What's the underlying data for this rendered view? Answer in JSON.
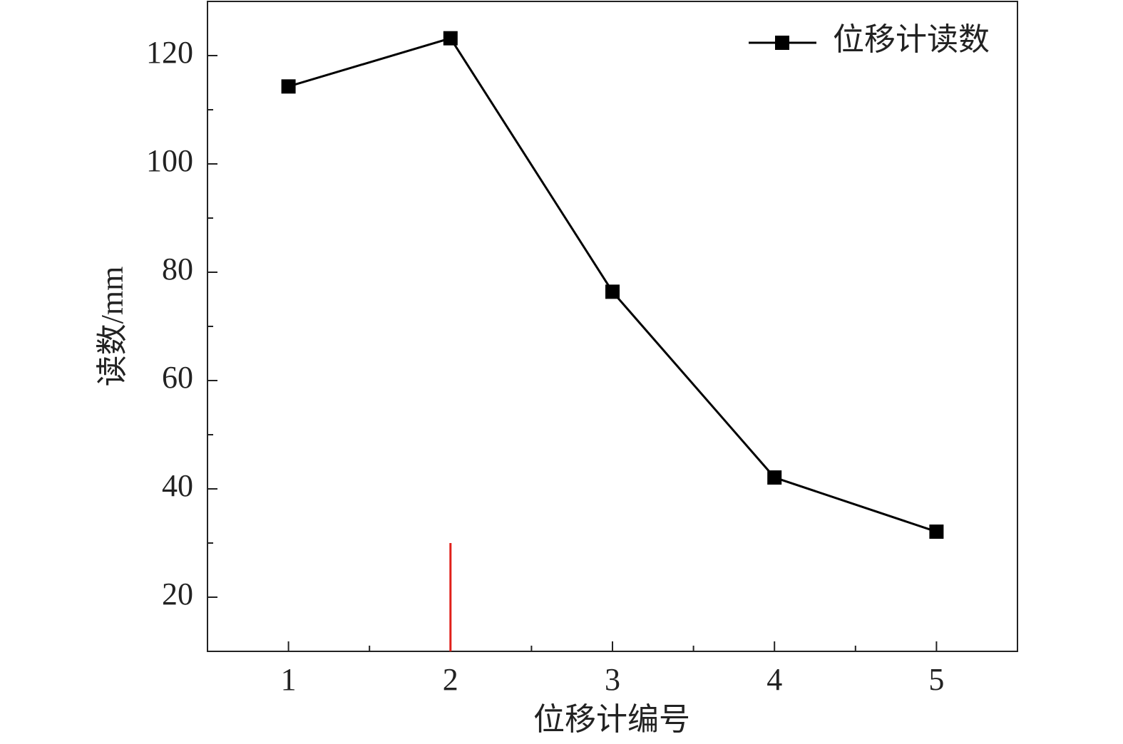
{
  "chart_data": {
    "type": "line",
    "x_label": "位移计编号",
    "y_label": "读数/mm",
    "x": [
      1,
      2,
      3,
      4,
      5
    ],
    "series": [
      {
        "name": "位移计读数",
        "color": "#000000",
        "marker": "square",
        "values": [
          114.3,
          123.2,
          76.4,
          42.1,
          32.1
        ]
      }
    ],
    "xlim": [
      0.5,
      5.5
    ],
    "xticks": [
      1,
      2,
      3,
      4,
      5
    ],
    "xminor_ticks": [
      1.5,
      2.5,
      3.5,
      4.5
    ],
    "ylim": [
      10,
      130
    ],
    "yticks": [
      20,
      40,
      60,
      80,
      100,
      120
    ],
    "yminor_ticks": [
      30,
      50,
      70,
      90,
      110
    ],
    "legend": "upper right",
    "marker_line": {
      "x": 2,
      "y": 30,
      "color": "#e0201b"
    }
  }
}
